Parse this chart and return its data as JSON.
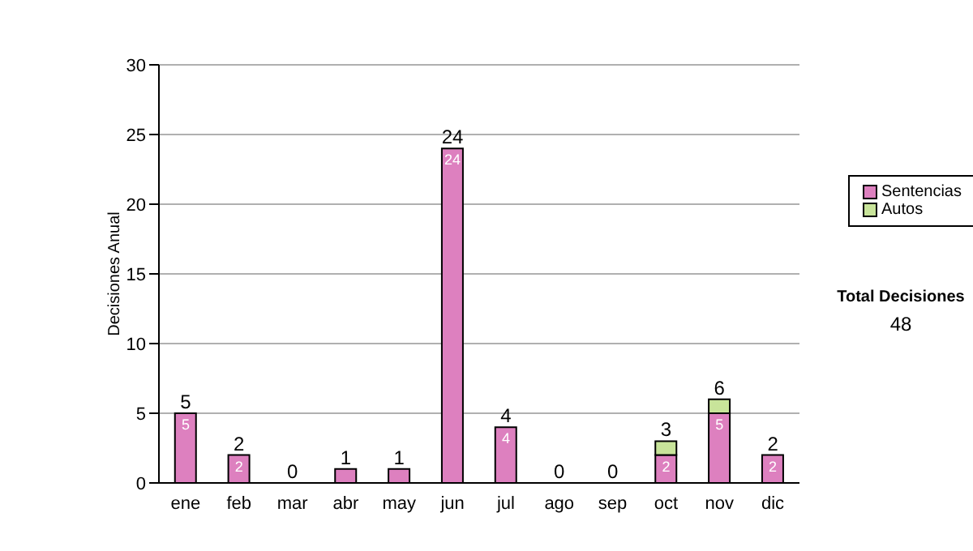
{
  "chart_data": {
    "type": "bar",
    "stacked": true,
    "ylabel": "Decisiones Anual",
    "categories": [
      "ene",
      "feb",
      "mar",
      "abr",
      "may",
      "jun",
      "jul",
      "ago",
      "sep",
      "oct",
      "nov",
      "dic"
    ],
    "series": [
      {
        "name": "Sentencias",
        "color": "#dd80bf",
        "values": [
          5,
          2,
          0,
          1,
          1,
          24,
          4,
          0,
          0,
          2,
          5,
          2
        ],
        "value_labels": [
          "5",
          "2",
          null,
          null,
          null,
          "24",
          "4",
          null,
          null,
          "2",
          "5",
          "2"
        ]
      },
      {
        "name": "Autos",
        "color": "#c8e49a",
        "values": [
          0,
          0,
          0,
          0,
          0,
          0,
          0,
          0,
          0,
          1,
          1,
          0
        ]
      }
    ],
    "totals": [
      "5",
      "2",
      "0",
      "1",
      "1",
      "24",
      "4",
      "0",
      "0",
      "3",
      "6",
      "2"
    ],
    "ylim": [
      0,
      30
    ],
    "yticks": [
      0,
      5,
      10,
      15,
      20,
      25,
      30
    ],
    "grid": "y",
    "legend": "right",
    "annotations": [
      "Total Decisiones",
      "48"
    ]
  }
}
